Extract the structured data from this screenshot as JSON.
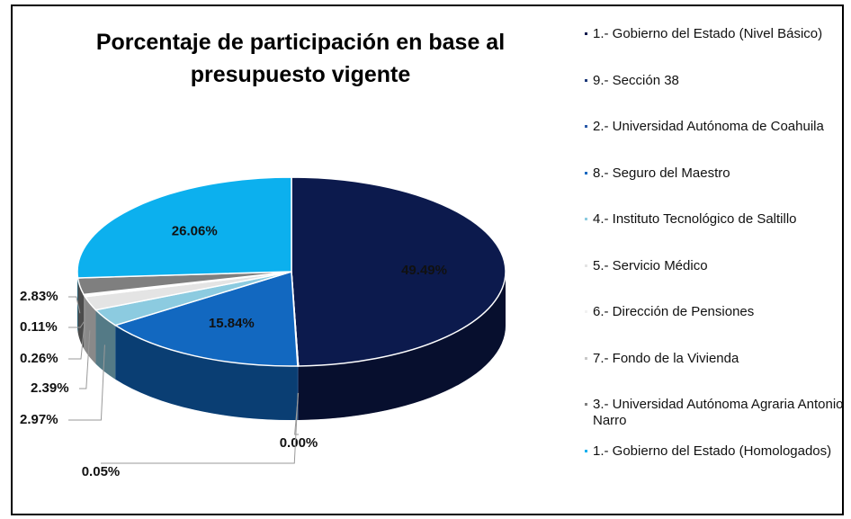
{
  "chart_data": {
    "type": "pie3d",
    "title": "Porcentaje de participación en base al presupuesto vigente",
    "categories": [
      "1.- Gobierno del Estado (Nivel Básico)",
      "9.- Sección 38",
      "2.- Universidad Autónoma de Coahuila",
      "8.- Seguro del Maestro",
      "4.- Instituto Tecnológico de Saltillo",
      "5.- Servicio Médico",
      "6.- Dirección de Pensiones",
      "7.- Fondo de la Vivienda",
      "3.- Universidad Autónoma Agraria Antonio Narro",
      "1.- Gobierno del Estado (Homologados)"
    ],
    "values": [
      49.49,
      0.0,
      0.05,
      15.84,
      2.97,
      2.39,
      0.26,
      0.11,
      2.83,
      26.06
    ],
    "value_labels": [
      "49.49%",
      "0.00%",
      "0.05%",
      "15.84%",
      "2.97%",
      "2.39%",
      "0.26%",
      "0.11%",
      "2.83%",
      "26.06%"
    ],
    "colors": [
      "#0c1a4d",
      "#1f3a7a",
      "#2a5aa8",
      "#1268c0",
      "#8ccbe0",
      "#e4e4e4",
      "#f2f2f2",
      "#c8c8c8",
      "#7f7f7f",
      "#0cb0ee"
    ]
  }
}
